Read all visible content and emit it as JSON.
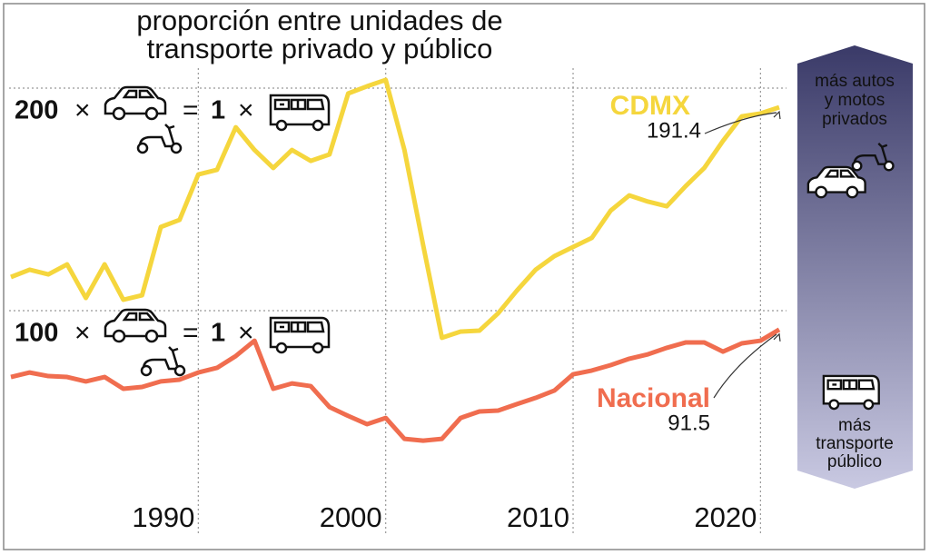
{
  "chart_data": {
    "type": "line",
    "title": [
      "proporción entre unidades de",
      "transporte privado y público"
    ],
    "x": [
      1980,
      1981,
      1982,
      1983,
      1984,
      1985,
      1986,
      1987,
      1988,
      1989,
      1990,
      1991,
      1992,
      1993,
      1994,
      1995,
      1996,
      1997,
      1998,
      1999,
      2000,
      2001,
      2002,
      2003,
      2004,
      2005,
      2006,
      2007,
      2008,
      2009,
      2010,
      2011,
      2012,
      2013,
      2014,
      2015,
      2016,
      2017,
      2018,
      2019,
      2020,
      2021
    ],
    "series": [
      {
        "name": "CDMX",
        "color": "#f5d63d",
        "values": [
          115.1,
          118.4,
          116.3,
          120.8,
          105.7,
          120.8,
          104.9,
          106.9,
          137.6,
          140.8,
          161.2,
          163.3,
          182.4,
          172.2,
          164.1,
          172.2,
          167.3,
          170.2,
          197.6,
          200.8,
          203.7,
          172.2,
          129.4,
          87.8,
          90.6,
          91.0,
          98.8,
          109.0,
          118.4,
          124.5,
          128.6,
          132.7,
          144.9,
          151.8,
          149.0,
          146.9,
          155.9,
          164.1,
          176.3,
          187.3,
          188.6,
          191.4
        ]
      },
      {
        "name": "Nacional",
        "color": "#f06d4f",
        "values": [
          70.2,
          72.2,
          70.6,
          70.2,
          68.2,
          70.2,
          64.9,
          65.7,
          68.2,
          69.0,
          72.2,
          74.3,
          79.6,
          86.5,
          64.9,
          67.3,
          66.1,
          56.7,
          52.7,
          49.0,
          51.8,
          42.4,
          41.6,
          42.4,
          51.8,
          54.7,
          55.1,
          58.0,
          60.8,
          64.1,
          71.4,
          73.1,
          75.5,
          78.4,
          80.4,
          83.3,
          85.7,
          85.7,
          81.6,
          85.3,
          86.5,
          91.5
        ]
      }
    ],
    "xlim": [
      1980,
      2021
    ],
    "xticks": [
      1990,
      2000,
      2010,
      2020
    ],
    "ylim": [
      0,
      240
    ],
    "yticks": [
      100,
      200
    ],
    "equation": {
      "times": "×",
      "equals": "=",
      "bus_count": 1
    },
    "scale_top": [
      "más autos",
      "y motos",
      "privados"
    ],
    "scale_bottom": [
      "más",
      "transporte",
      "público"
    ],
    "grid": true
  }
}
